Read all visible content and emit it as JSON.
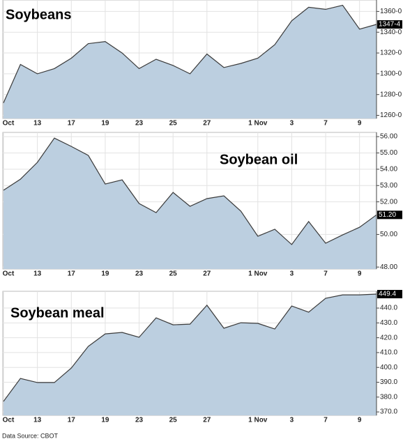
{
  "chart_data": [
    {
      "type": "area",
      "title": "Soybeans",
      "categories": [
        "Oct",
        null,
        "13",
        null,
        "17",
        null,
        "19",
        null,
        "23",
        null,
        "25",
        null,
        "27",
        null,
        null,
        "1 Nov",
        null,
        "3",
        null,
        "7",
        null,
        "9",
        null
      ],
      "values": [
        1272,
        1309,
        1300,
        1305,
        1315,
        1329,
        1331,
        1320,
        1305,
        1314,
        1308,
        1300,
        1319,
        1306,
        1310,
        1315,
        1328,
        1351,
        1364,
        1362,
        1366,
        1343,
        1347.5
      ],
      "value_labels": [
        null,
        null,
        null,
        null,
        null,
        null,
        null,
        null,
        null,
        null,
        null,
        null,
        null,
        null,
        null,
        null,
        null,
        null,
        null,
        null,
        null,
        null,
        "1347-4"
      ],
      "ylim": [
        1257,
        1371
      ],
      "yticks": [
        {
          "value": 1260,
          "label": "1260-0"
        },
        {
          "value": 1280,
          "label": "1280-0"
        },
        {
          "value": 1300,
          "label": "1300-0"
        },
        {
          "value": 1320,
          "label": "1320-0"
        },
        {
          "value": 1340,
          "label": "1340-0"
        },
        {
          "value": 1360,
          "label": "1360-0"
        }
      ],
      "color": "#bccfe0",
      "line_color": "#3a3a3a",
      "grid": true
    },
    {
      "type": "area",
      "title": "Soybean oil",
      "categories": [
        "Oct",
        null,
        "13",
        null,
        "17",
        null,
        "19",
        null,
        "23",
        null,
        "25",
        null,
        "27",
        null,
        null,
        "1 Nov",
        null,
        "3",
        null,
        "7",
        null,
        "9",
        null
      ],
      "values": [
        52.71,
        53.39,
        54.42,
        55.91,
        55.4,
        54.85,
        53.09,
        53.35,
        51.9,
        51.34,
        52.58,
        51.73,
        52.2,
        52.37,
        51.43,
        49.89,
        50.32,
        49.38,
        50.79,
        49.46,
        49.97,
        50.44,
        51.2
      ],
      "value_labels": [
        null,
        null,
        null,
        null,
        null,
        null,
        null,
        null,
        null,
        null,
        null,
        null,
        null,
        null,
        null,
        null,
        null,
        null,
        null,
        null,
        null,
        null,
        "51.20"
      ],
      "ylim": [
        47.88,
        56.26
      ],
      "yticks": [
        {
          "value": 48,
          "label": "48.00"
        },
        {
          "value": 50,
          "label": "50.00"
        },
        {
          "value": 52,
          "label": "52.00"
        },
        {
          "value": 53,
          "label": "53.00"
        },
        {
          "value": 54,
          "label": "54.00"
        },
        {
          "value": 55,
          "label": "55.00"
        },
        {
          "value": 56,
          "label": "56.00"
        }
      ],
      "color": "#bccfe0",
      "line_color": "#3a3a3a",
      "grid": true
    },
    {
      "type": "area",
      "title": "Soybean meal",
      "categories": [
        "Oct",
        null,
        "13",
        null,
        "17",
        null,
        "19",
        null,
        "23",
        null,
        "25",
        null,
        "27",
        null,
        null,
        "1 Nov",
        null,
        "3",
        null,
        "7",
        null,
        "9",
        null
      ],
      "values": [
        377.1,
        392.6,
        389.8,
        389.8,
        399.6,
        414.2,
        422.6,
        423.6,
        420.3,
        433.4,
        428.7,
        429.2,
        441.9,
        426.4,
        430.1,
        429.7,
        425.9,
        441.4,
        437.2,
        446.6,
        448.9,
        448.9,
        449.4
      ],
      "value_labels": [
        null,
        null,
        null,
        null,
        null,
        null,
        null,
        null,
        null,
        null,
        null,
        null,
        null,
        null,
        null,
        null,
        null,
        null,
        null,
        null,
        null,
        null,
        "449.4"
      ],
      "ylim": [
        367.7,
        451.3
      ],
      "yticks": [
        {
          "value": 370,
          "label": "370.0"
        },
        {
          "value": 380,
          "label": "380.0"
        },
        {
          "value": 390,
          "label": "390.0"
        },
        {
          "value": 400,
          "label": "400.0"
        },
        {
          "value": 410,
          "label": "410.0"
        },
        {
          "value": 420,
          "label": "420.0"
        },
        {
          "value": 430,
          "label": "430.0"
        },
        {
          "value": 440,
          "label": "440.0"
        }
      ],
      "color": "#bccfe0",
      "line_color": "#3a3a3a",
      "grid": true
    }
  ],
  "source": "Data Source: CBOT"
}
